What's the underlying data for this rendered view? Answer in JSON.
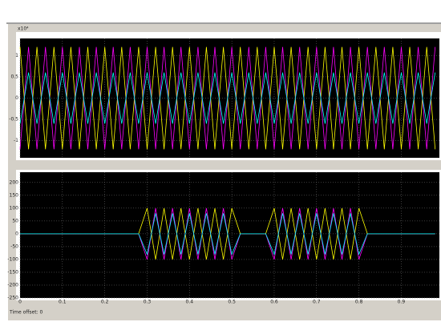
{
  "chart_data": [
    {
      "type": "line",
      "exponent_label": "x10⁴",
      "xlim": [
        0,
        0.99
      ],
      "ylim": [
        -1.4,
        1.4
      ],
      "yticks": [
        1,
        0.5,
        0,
        -0.5,
        -1
      ],
      "grid": true,
      "x": [
        0,
        0.02,
        0.04,
        0.06,
        0.08,
        0.1,
        0.12,
        0.14,
        0.16,
        0.18,
        0.2,
        0.22,
        0.24,
        0.26,
        0.28,
        0.3,
        0.32,
        0.34,
        0.36,
        0.38,
        0.4,
        0.42,
        0.44,
        0.46,
        0.48,
        0.5,
        0.52,
        0.54,
        0.56,
        0.58,
        0.6,
        0.62,
        0.64,
        0.66,
        0.68,
        0.7,
        0.72,
        0.74,
        0.76,
        0.78,
        0.8,
        0.82,
        0.84,
        0.86,
        0.88,
        0.9,
        0.92,
        0.94,
        0.96,
        0.98
      ],
      "series": [
        {
          "color": "#ffff00",
          "values": [
            1.2,
            -1.2,
            1.2,
            -1.2,
            1.2,
            -1.2,
            1.2,
            -1.2,
            1.2,
            -1.2,
            1.2,
            -1.2,
            1.2,
            -1.2,
            1.2,
            -1.2,
            1.2,
            -1.2,
            1.2,
            -1.2,
            1.2,
            -1.2,
            1.2,
            -1.2,
            1.2,
            -1.2,
            1.2,
            -1.2,
            1.2,
            -1.2,
            1.2,
            -1.2,
            1.2,
            -1.2,
            1.2,
            -1.2,
            1.2,
            -1.2,
            1.2,
            -1.2,
            1.2,
            -1.2,
            1.2,
            -1.2,
            1.2,
            -1.2,
            1.2,
            -1.2,
            1.2,
            -1.2
          ]
        },
        {
          "color": "#ff00ff",
          "values": [
            -1.2,
            1.2,
            -1.2,
            1.2,
            -1.2,
            1.2,
            -1.2,
            1.2,
            -1.2,
            1.2,
            -1.2,
            1.2,
            -1.2,
            1.2,
            -1.2,
            1.2,
            -1.2,
            1.2,
            -1.2,
            1.2,
            -1.2,
            1.2,
            -1.2,
            1.2,
            -1.2,
            1.2,
            -1.2,
            1.2,
            -1.2,
            1.2,
            -1.2,
            1.2,
            -1.2,
            1.2,
            -1.2,
            1.2,
            -1.2,
            1.2,
            -1.2,
            1.2,
            -1.2,
            1.2,
            -1.2,
            1.2,
            -1.2,
            1.2,
            -1.2,
            1.2,
            -1.2,
            1.2
          ]
        },
        {
          "color": "#00ffff",
          "values": [
            -0.6,
            0.6,
            -0.6,
            0.6,
            -0.6,
            0.6,
            -0.6,
            0.6,
            -0.6,
            0.6,
            -0.6,
            0.6,
            -0.6,
            0.6,
            -0.6,
            0.6,
            -0.6,
            0.6,
            -0.6,
            0.6,
            -0.6,
            0.6,
            -0.6,
            0.6,
            -0.6,
            0.6,
            -0.6,
            0.6,
            -0.6,
            0.6,
            -0.6,
            0.6,
            -0.6,
            0.6,
            -0.6,
            0.6,
            -0.6,
            0.6,
            -0.6,
            0.6,
            -0.6,
            0.6,
            -0.6,
            0.6,
            -0.6,
            0.6,
            -0.6,
            0.6,
            -0.6,
            0.6
          ]
        }
      ]
    },
    {
      "type": "line",
      "footer": "Time offset:  0",
      "xlim": [
        0,
        0.99
      ],
      "xticks": [
        0,
        0.1,
        0.2,
        0.3,
        0.4,
        0.5,
        0.6,
        0.7,
        0.8,
        0.9
      ],
      "ylim": [
        -250,
        240
      ],
      "yticks": [
        200,
        150,
        100,
        50,
        0,
        -50,
        -100,
        -150,
        -200,
        -250
      ],
      "grid": true,
      "x": [
        0,
        0.02,
        0.04,
        0.06,
        0.08,
        0.1,
        0.12,
        0.14,
        0.16,
        0.18,
        0.2,
        0.22,
        0.24,
        0.26,
        0.28,
        0.3,
        0.32,
        0.34,
        0.36,
        0.38,
        0.4,
        0.42,
        0.44,
        0.46,
        0.48,
        0.5,
        0.52,
        0.54,
        0.56,
        0.58,
        0.6,
        0.62,
        0.64,
        0.66,
        0.68,
        0.7,
        0.72,
        0.74,
        0.76,
        0.78,
        0.8,
        0.82,
        0.84,
        0.86,
        0.88,
        0.9,
        0.92,
        0.94,
        0.96,
        0.98
      ],
      "series": [
        {
          "color": "#ffff00",
          "values": [
            0,
            0,
            0,
            0,
            0,
            0,
            0,
            0,
            0,
            0,
            0,
            0,
            0,
            0,
            0,
            100,
            -100,
            100,
            -100,
            100,
            -100,
            100,
            -100,
            100,
            -100,
            100,
            0,
            0,
            0,
            0,
            100,
            -100,
            100,
            -100,
            100,
            -100,
            100,
            -100,
            100,
            -100,
            100,
            0,
            0,
            0,
            0,
            0,
            0,
            0,
            0,
            0
          ]
        },
        {
          "color": "#ff00ff",
          "values": [
            0,
            0,
            0,
            0,
            0,
            0,
            0,
            0,
            0,
            0,
            0,
            0,
            0,
            0,
            0,
            -100,
            100,
            -100,
            100,
            -100,
            100,
            -100,
            100,
            -100,
            100,
            -100,
            0,
            0,
            0,
            0,
            -100,
            100,
            -100,
            100,
            -100,
            100,
            -100,
            100,
            -100,
            100,
            -100,
            0,
            0,
            0,
            0,
            0,
            0,
            0,
            0,
            0
          ]
        },
        {
          "color": "#00ffff",
          "values": [
            0,
            0,
            0,
            0,
            0,
            0,
            0,
            0,
            0,
            0,
            0,
            0,
            0,
            0,
            0,
            -80,
            80,
            -80,
            80,
            -80,
            80,
            -80,
            80,
            -80,
            80,
            -80,
            0,
            0,
            0,
            0,
            -80,
            80,
            -80,
            80,
            -80,
            80,
            -80,
            80,
            -80,
            80,
            -80,
            0,
            0,
            0,
            0,
            0,
            0,
            0,
            0,
            0
          ]
        }
      ]
    }
  ]
}
